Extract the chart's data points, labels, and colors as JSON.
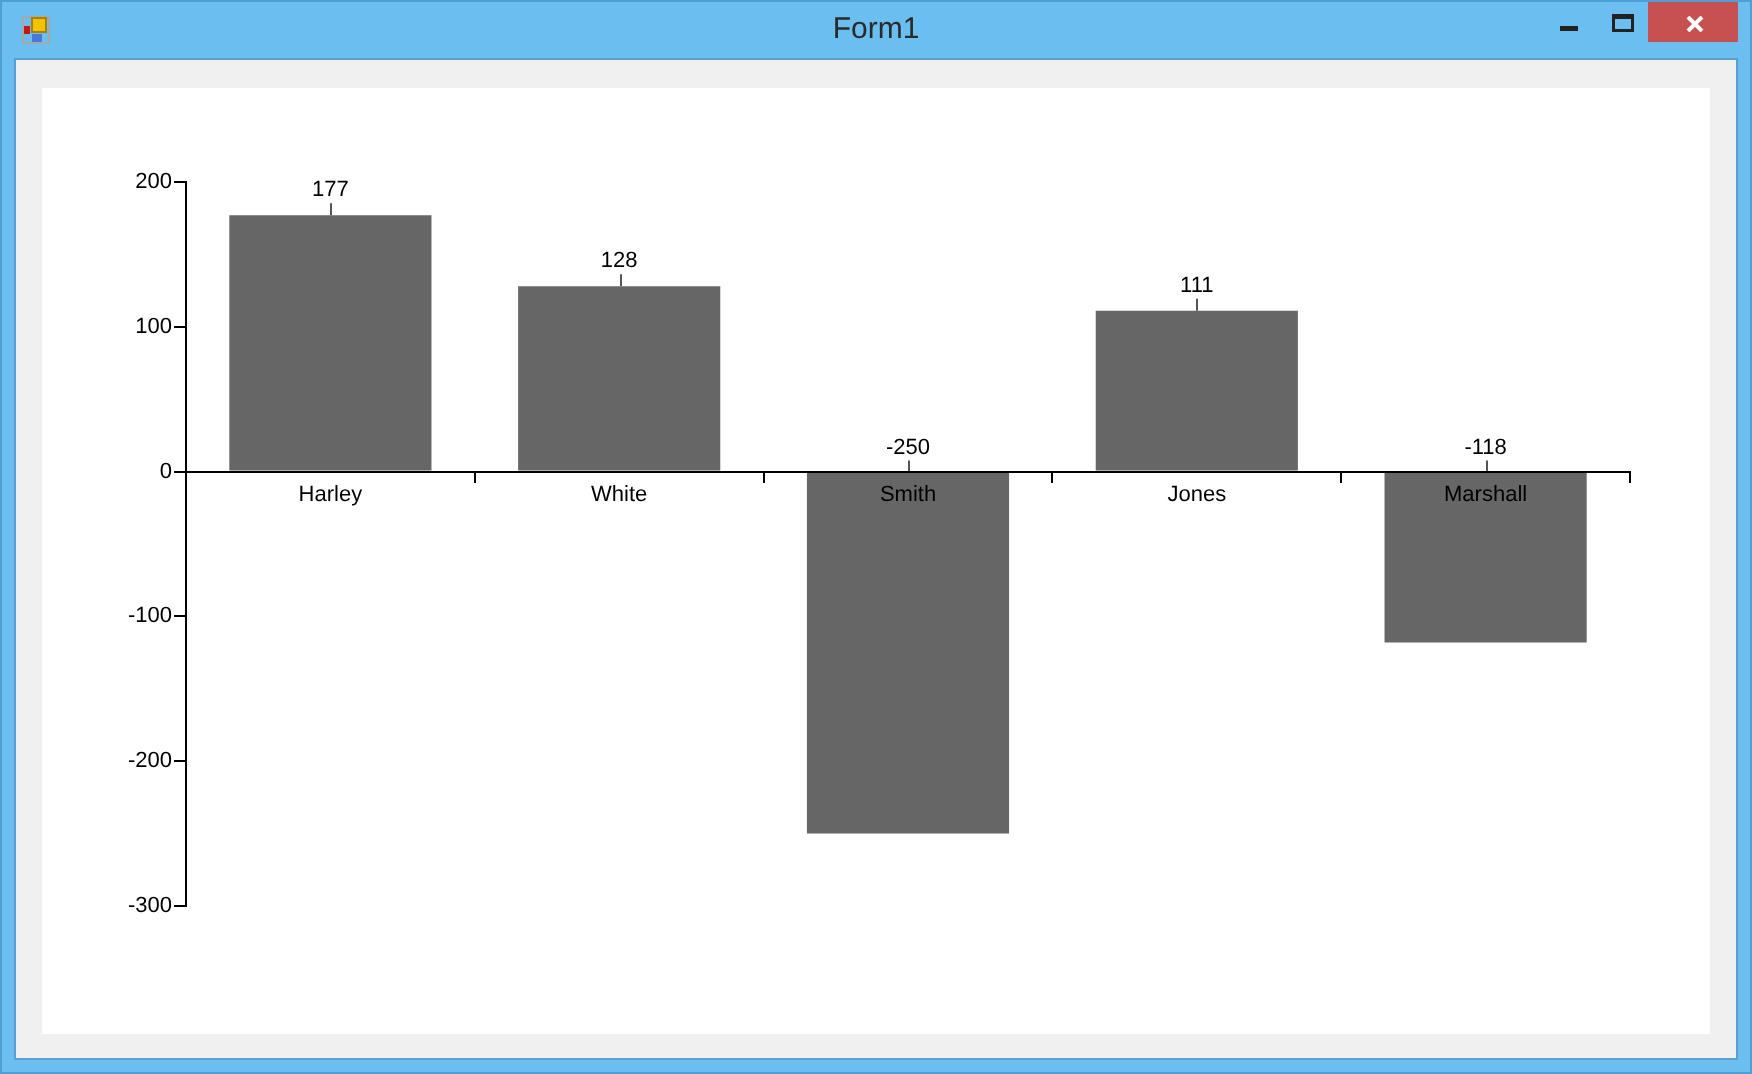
{
  "chart_data": {
    "type": "bar",
    "title": "Form1",
    "categories": [
      "Harley",
      "White",
      "Smith",
      "Jones",
      "Marshall"
    ],
    "values": [
      177,
      128,
      -250,
      111,
      -118
    ],
    "color": "#666666",
    "ylim": [
      -300,
      200
    ],
    "yticks": [
      -300,
      -200,
      -100,
      0,
      100,
      200
    ],
    "data_labels": true
  }
}
